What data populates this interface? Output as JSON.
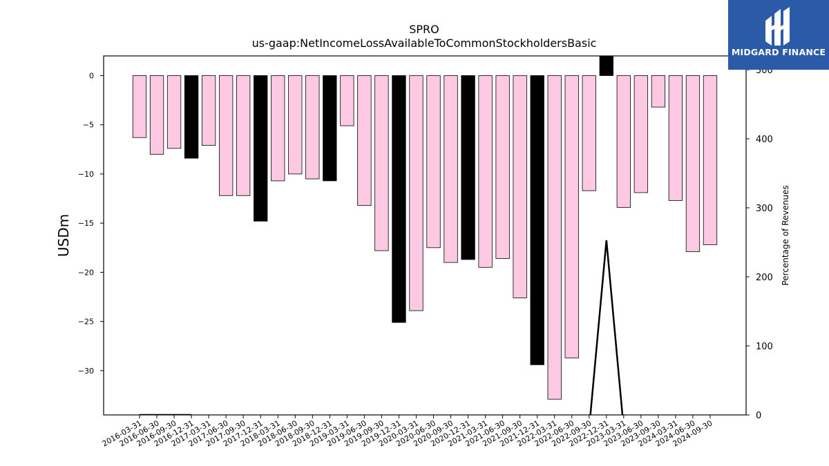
{
  "chart_data": {
    "type": "bar",
    "title": "SPRO",
    "subtitle": "us-gaap:NetIncomeLossAvailableToCommonStockholdersBasic",
    "ylabel": "USDm",
    "y2label": "Percentage of Revenues",
    "ylim": [
      -34.5,
      2.0
    ],
    "y2lim": [
      0,
      520
    ],
    "yticks": [
      0,
      -5,
      -10,
      -15,
      -20,
      -25,
      -30
    ],
    "y2ticks": [
      0,
      100,
      200,
      300,
      400,
      500
    ],
    "categories": [
      "2016-03-31",
      "2016-06-30",
      "2016-09-30",
      "2016-12-31",
      "2017-03-31",
      "2017-06-30",
      "2017-09-30",
      "2017-12-31",
      "2018-03-31",
      "2018-06-30",
      "2018-09-30",
      "2018-12-31",
      "2019-03-31",
      "2019-06-30",
      "2019-09-30",
      "2019-12-31",
      "2020-03-31",
      "2020-06-30",
      "2020-09-30",
      "2020-12-31",
      "2021-03-31",
      "2021-06-30",
      "2021-09-30",
      "2021-12-31",
      "2022-03-31",
      "2022-06-30",
      "2022-09-30",
      "2022-12-31",
      "2023-03-31",
      "2023-06-30",
      "2023-09-30",
      "2024-03-31",
      "2024-06-30",
      "2024-09-30"
    ],
    "series": [
      {
        "values": [
          -6.3,
          -8.0,
          -7.4,
          -8.4,
          -7.1,
          -12.2,
          -12.2,
          -14.8,
          -10.7,
          -10.0,
          -10.5,
          -10.7,
          -5.1,
          -13.2,
          -17.8,
          -25.1,
          -23.9,
          -17.5,
          -19.0,
          -18.7,
          -19.5,
          -18.6,
          -22.6,
          -29.4,
          -32.9,
          -28.7,
          -11.7,
          2.0,
          -13.4,
          -11.9,
          -3.2,
          -12.7,
          -17.9,
          -17.2
        ],
        "highlight": [
          false,
          false,
          false,
          true,
          false,
          false,
          false,
          true,
          false,
          false,
          false,
          true,
          false,
          false,
          false,
          true,
          false,
          false,
          false,
          true,
          false,
          false,
          false,
          true,
          false,
          false,
          false,
          true,
          false,
          false,
          false,
          false,
          false,
          false
        ],
        "color": "#fcc8e2",
        "highlight_color": "#000000"
      },
      {
        "type": "line",
        "axis": "right",
        "values": [
          0,
          0,
          0,
          0,
          null,
          null,
          null,
          null,
          null,
          null,
          null,
          null,
          null,
          null,
          null,
          null,
          null,
          null,
          null,
          null,
          null,
          null,
          null,
          null,
          null,
          null,
          -20,
          253,
          -20,
          null,
          null,
          null,
          null,
          null
        ],
        "color": "#000000"
      }
    ]
  },
  "brand": {
    "name": "MIDGARD FINANCE",
    "color": "#2a5aa8",
    "icon": "midgard-logo-icon"
  }
}
